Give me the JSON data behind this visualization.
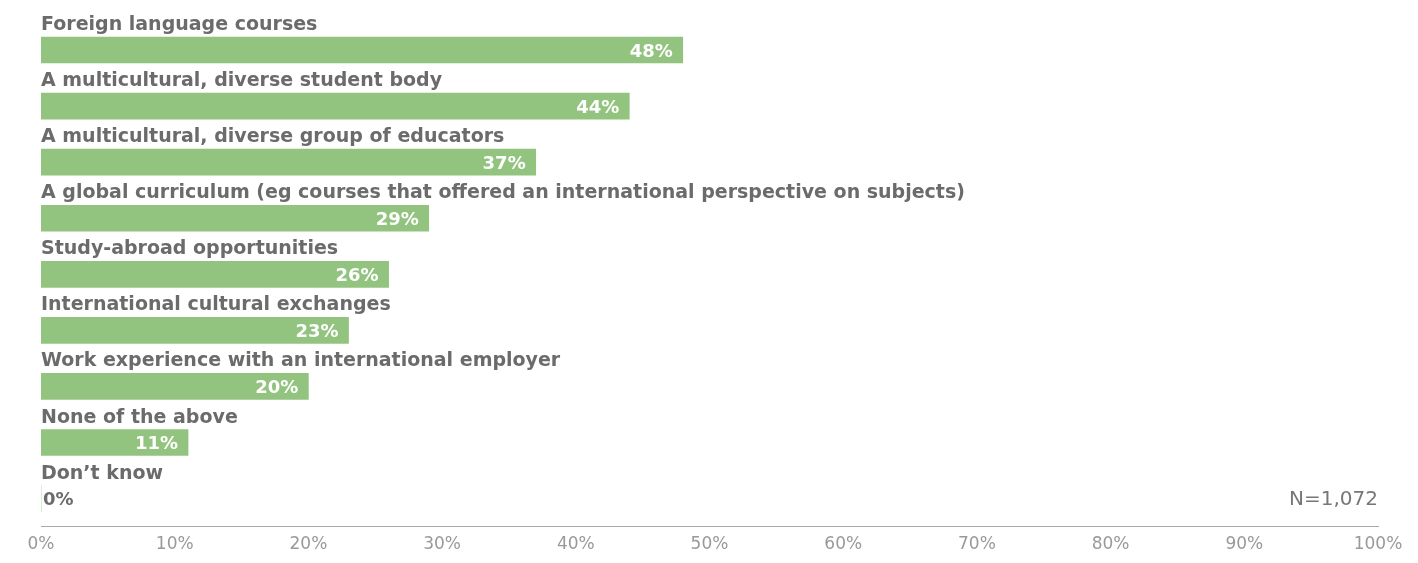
{
  "chart_data": {
    "type": "bar",
    "orientation": "horizontal",
    "categories": [
      "Foreign language courses",
      "A multicultural, diverse student body",
      "A multicultural, diverse group of educators",
      "A global curriculum (eg courses that offered an international perspective on subjects)",
      "Study-abroad opportunities",
      "International cultural exchanges",
      "Work experience with an international employer",
      "None of the above",
      "Don’t know"
    ],
    "values": [
      48,
      44,
      37,
      29,
      26,
      23,
      20,
      11,
      0
    ],
    "value_labels": [
      "48%",
      "44%",
      "37%",
      "29%",
      "26%",
      "23%",
      "20%",
      "11%",
      "0%"
    ],
    "color": "#93c47f",
    "xlim": [
      0,
      100
    ],
    "xticks": [
      {
        "value": 0,
        "label": "0%"
      },
      {
        "value": 10,
        "label": "10%"
      },
      {
        "value": 20,
        "label": "20%"
      },
      {
        "value": 30,
        "label": "30%"
      },
      {
        "value": 40,
        "label": "40%"
      },
      {
        "value": 50,
        "label": "50%"
      },
      {
        "value": 60,
        "label": "60%"
      },
      {
        "value": 70,
        "label": "70%"
      },
      {
        "value": 80,
        "label": "80%"
      },
      {
        "value": 90,
        "label": "90%"
      },
      {
        "value": 100,
        "label": "100%"
      }
    ],
    "grid": false,
    "legend": false,
    "annotations": [
      "N=1,072"
    ]
  }
}
